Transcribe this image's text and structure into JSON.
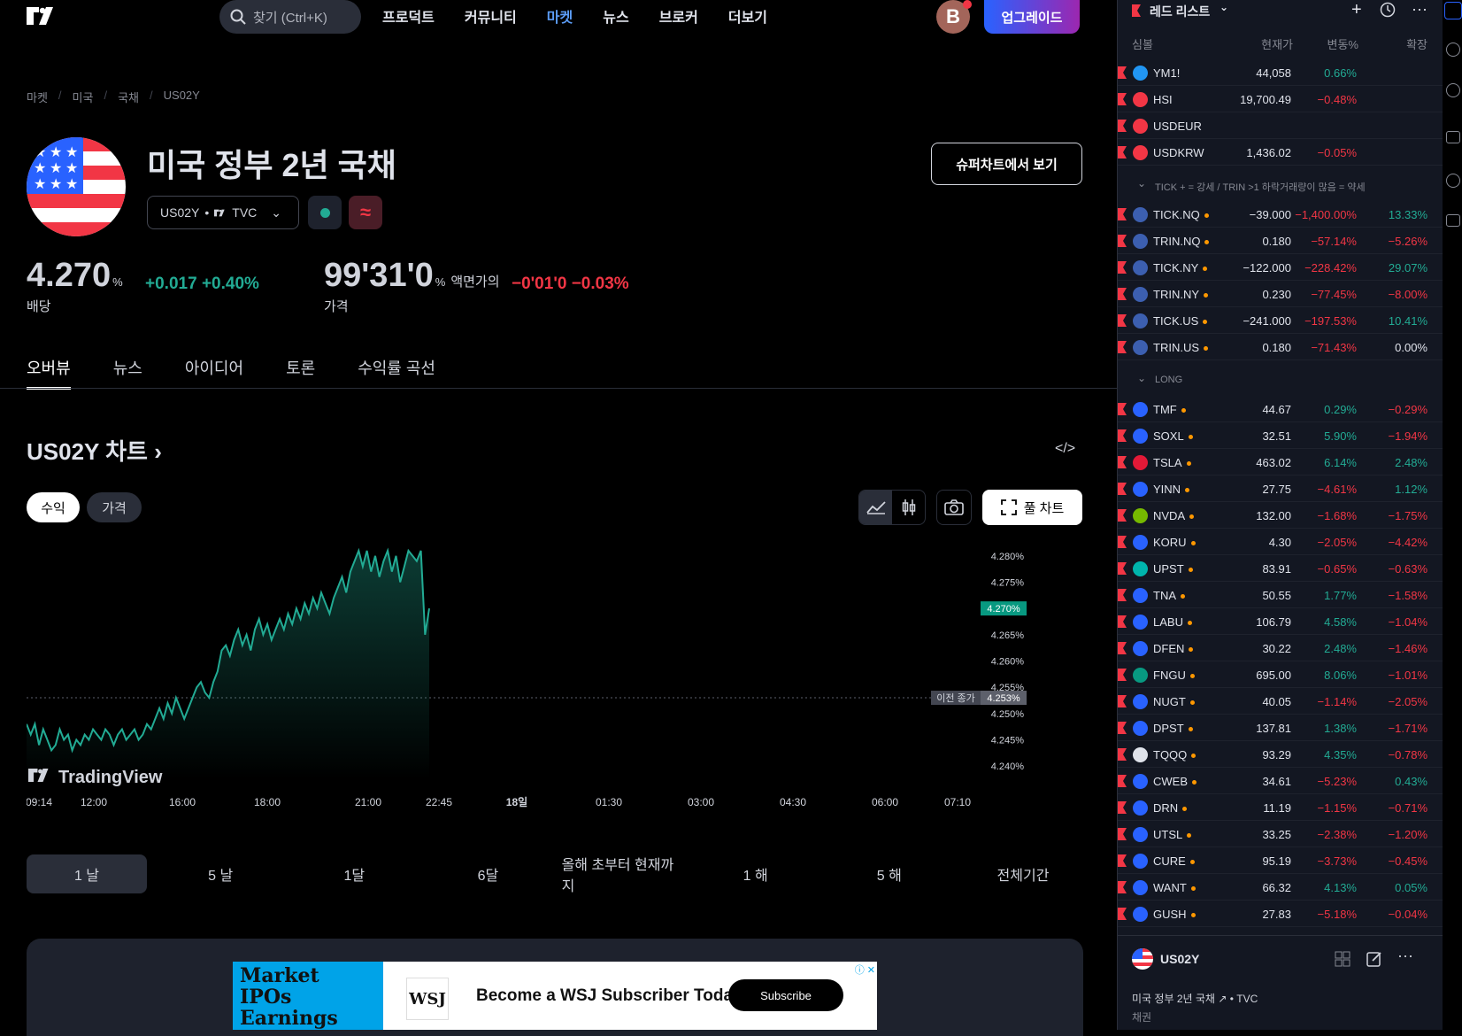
{
  "nav": {
    "search_placeholder": "찾기 (Ctrl+K)",
    "links": [
      "프로덕트",
      "커뮤니티",
      "마켓",
      "뉴스",
      "브로커",
      "더보기"
    ],
    "active_link": "마켓",
    "avatar_letter": "B",
    "upgrade_label": "업그레이드"
  },
  "breadcrumb": [
    "마켓",
    "미국",
    "국채",
    "US02Y"
  ],
  "header": {
    "title": "미국 정부 2년 국채",
    "symbol": "US02Y",
    "exchange": "TVC",
    "superchart_label": "슈퍼차트에서 보기"
  },
  "quote": {
    "yield": "4.270",
    "yield_unit": "%",
    "yield_change": "+0.017",
    "yield_change_pct": "+0.40%",
    "yield_label": "배당",
    "price": "99'31'0",
    "price_unit": "%",
    "price_unit_label": "액면가의",
    "price_change": "−0'01'0",
    "price_change_pct": "−0.03%",
    "price_label": "가격"
  },
  "tabs": [
    "오버뷰",
    "뉴스",
    "아이디어",
    "토론",
    "수익률 곡선"
  ],
  "chart": {
    "title": "US02Y 차트",
    "mode_buttons": [
      "수익",
      "가격"
    ],
    "fullchart_label": "풀 차트",
    "watermark": "TradingView",
    "prev_close_label": "이전 종가",
    "prev_close_value": "4.253%",
    "current_value": "4.270%",
    "ranges": [
      "1 날",
      "5 날",
      "1달",
      "6달",
      "올해 초부터 현재까지",
      "1 해",
      "5 해",
      "전체기간"
    ]
  },
  "chart_data": {
    "type": "area",
    "title": "",
    "xlabel": "",
    "ylabel": "",
    "ylim": [
      4.2375,
      4.283
    ],
    "yticks": [
      "4.280%",
      "4.275%",
      "4.270%",
      "4.265%",
      "4.260%",
      "4.255%",
      "4.250%",
      "4.245%",
      "4.240%"
    ],
    "ytick_values": [
      4.28,
      4.275,
      4.27,
      4.265,
      4.26,
      4.255,
      4.25,
      4.245,
      4.24
    ],
    "xticks": [
      "09:14",
      "12:00",
      "16:00",
      "18:00",
      "21:00",
      "22:45",
      "18일",
      "01:30",
      "03:00",
      "04:30",
      "06:00",
      "07:10"
    ],
    "prev_close": 4.253,
    "series": [
      {
        "values": [
          4.248,
          4.246,
          4.248,
          4.244,
          4.247,
          4.245,
          4.243,
          4.244,
          4.247,
          4.245,
          4.246,
          4.243,
          4.245,
          4.244,
          4.246,
          4.245,
          4.247,
          4.246,
          4.245,
          4.247,
          4.246,
          4.244,
          4.246,
          4.247,
          4.245,
          4.246,
          4.247,
          4.245,
          4.246,
          4.248,
          4.247,
          4.249,
          4.251,
          4.249,
          4.252,
          4.25,
          4.253,
          4.251,
          4.249,
          4.251,
          4.253,
          4.255,
          4.256,
          4.254,
          4.253,
          4.256,
          4.258,
          4.262,
          4.263,
          4.261,
          4.264,
          4.266,
          4.263,
          4.265,
          4.262,
          4.266,
          4.268,
          4.265,
          4.267,
          4.264,
          4.266,
          4.268,
          4.266,
          4.269,
          4.267,
          4.27,
          4.268,
          4.271,
          4.269,
          4.272,
          4.27,
          4.273,
          4.271,
          4.269,
          4.272,
          4.274,
          4.276,
          4.273,
          4.277,
          4.279,
          4.281,
          4.278,
          4.281,
          4.277,
          4.28,
          4.276,
          4.279,
          4.281,
          4.277,
          4.28,
          4.275,
          4.278,
          4.281,
          4.28,
          4.279,
          4.281,
          4.265,
          4.27
        ]
      }
    ]
  },
  "watchlist": {
    "title": "레드 리스트",
    "columns": [
      "심볼",
      "현재가",
      "변동%",
      "확장"
    ],
    "sections": [
      {
        "name": "",
        "rows": [
          {
            "sym": "YM1!",
            "icon": "30",
            "icolor": "#2196f3",
            "last": "44,058",
            "chp": "0.66%",
            "chpc": "pos",
            "ext": "",
            "extc": ""
          },
          {
            "sym": "HSI",
            "icon": "hsi-icon",
            "icolor": "#f23645",
            "last": "19,700.49",
            "chp": "−0.48%",
            "chpc": "neg",
            "ext": "",
            "extc": ""
          },
          {
            "sym": "USDEUR",
            "icon": "fx-icon",
            "icolor": "#f23645",
            "last": "",
            "chp": "",
            "chpc": "",
            "ext": "",
            "extc": ""
          },
          {
            "sym": "USDKRW",
            "icon": "fx-icon",
            "icolor": "#f23645",
            "last": "1,436.02",
            "chp": "−0.05%",
            "chpc": "neg",
            "ext": "",
            "extc": ""
          }
        ]
      },
      {
        "name": "TICK + = 강세 / TRIN >1 하락거래량이 많음 = 약세",
        "rows": [
          {
            "sym": "TICK.NQ",
            "icon": "us-flag",
            "icolor": "#3c5fb0",
            "last": "−39.000",
            "chp": "−1,400.00%",
            "chpc": "neg",
            "ext": "13.33%",
            "extc": "pos"
          },
          {
            "sym": "TRIN.NQ",
            "icon": "us-flag",
            "icolor": "#3c5fb0",
            "last": "0.180",
            "chp": "−57.14%",
            "chpc": "neg",
            "ext": "−5.26%",
            "extc": "neg"
          },
          {
            "sym": "TICK.NY",
            "icon": "us-flag",
            "icolor": "#3c5fb0",
            "last": "−122.000",
            "chp": "−228.42%",
            "chpc": "neg",
            "ext": "29.07%",
            "extc": "pos"
          },
          {
            "sym": "TRIN.NY",
            "icon": "us-flag",
            "icolor": "#3c5fb0",
            "last": "0.230",
            "chp": "−77.45%",
            "chpc": "neg",
            "ext": "−8.00%",
            "extc": "neg"
          },
          {
            "sym": "TICK.US",
            "icon": "us-flag",
            "icolor": "#3c5fb0",
            "last": "−241.000",
            "chp": "−197.53%",
            "chpc": "neg",
            "ext": "10.41%",
            "extc": "pos"
          },
          {
            "sym": "TRIN.US",
            "icon": "us-flag",
            "icolor": "#3c5fb0",
            "last": "0.180",
            "chp": "−71.43%",
            "chpc": "neg",
            "ext": "0.00%",
            "extc": ""
          }
        ]
      },
      {
        "name": "LONG",
        "rows": [
          {
            "sym": "TMF",
            "icon": "etf-icon",
            "icolor": "#2962ff",
            "last": "44.67",
            "chp": "0.29%",
            "chpc": "pos",
            "ext": "−0.29%",
            "extc": "neg"
          },
          {
            "sym": "SOXL",
            "icon": "etf-icon",
            "icolor": "#2962ff",
            "last": "32.51",
            "chp": "5.90%",
            "chpc": "pos",
            "ext": "−1.94%",
            "extc": "neg"
          },
          {
            "sym": "TSLA",
            "icon": "tesla-icon",
            "icolor": "#e31937",
            "last": "463.02",
            "chp": "6.14%",
            "chpc": "pos",
            "ext": "2.48%",
            "extc": "pos"
          },
          {
            "sym": "YINN",
            "icon": "etf-icon",
            "icolor": "#2962ff",
            "last": "27.75",
            "chp": "−4.61%",
            "chpc": "neg",
            "ext": "1.12%",
            "extc": "pos"
          },
          {
            "sym": "NVDA",
            "icon": "nvidia-icon",
            "icolor": "#76b900",
            "last": "132.00",
            "chp": "−1.68%",
            "chpc": "neg",
            "ext": "−1.75%",
            "extc": "neg"
          },
          {
            "sym": "KORU",
            "icon": "etf-icon",
            "icolor": "#2962ff",
            "last": "4.30",
            "chp": "−2.05%",
            "chpc": "neg",
            "ext": "−4.42%",
            "extc": "neg"
          },
          {
            "sym": "UPST",
            "icon": "upstart-icon",
            "icolor": "#00b5ad",
            "last": "83.91",
            "chp": "−0.65%",
            "chpc": "neg",
            "ext": "−0.63%",
            "extc": "neg"
          },
          {
            "sym": "TNA",
            "icon": "etf-icon",
            "icolor": "#2962ff",
            "last": "50.55",
            "chp": "1.77%",
            "chpc": "pos",
            "ext": "−1.58%",
            "extc": "neg"
          },
          {
            "sym": "LABU",
            "icon": "etf-icon",
            "icolor": "#2962ff",
            "last": "106.79",
            "chp": "4.58%",
            "chpc": "pos",
            "ext": "−1.04%",
            "extc": "neg"
          },
          {
            "sym": "DFEN",
            "icon": "etf-icon",
            "icolor": "#2962ff",
            "last": "30.22",
            "chp": "2.48%",
            "chpc": "pos",
            "ext": "−1.46%",
            "extc": "neg"
          },
          {
            "sym": "FNGU",
            "icon": "fngu-icon",
            "icolor": "#089981",
            "last": "695.00",
            "chp": "8.06%",
            "chpc": "pos",
            "ext": "−1.01%",
            "extc": "neg"
          },
          {
            "sym": "NUGT",
            "icon": "etf-icon",
            "icolor": "#2962ff",
            "last": "40.05",
            "chp": "−1.14%",
            "chpc": "neg",
            "ext": "−2.05%",
            "extc": "neg"
          },
          {
            "sym": "DPST",
            "icon": "etf-icon",
            "icolor": "#2962ff",
            "last": "137.81",
            "chp": "1.38%",
            "chpc": "pos",
            "ext": "−1.71%",
            "extc": "neg"
          },
          {
            "sym": "TQQQ",
            "icon": "tqqq-icon",
            "icolor": "#e0e3eb",
            "last": "93.29",
            "chp": "4.35%",
            "chpc": "pos",
            "ext": "−0.78%",
            "extc": "neg"
          },
          {
            "sym": "CWEB",
            "icon": "etf-icon",
            "icolor": "#2962ff",
            "last": "34.61",
            "chp": "−5.23%",
            "chpc": "neg",
            "ext": "0.43%",
            "extc": "pos"
          },
          {
            "sym": "DRN",
            "icon": "etf-icon",
            "icolor": "#2962ff",
            "last": "11.19",
            "chp": "−1.15%",
            "chpc": "neg",
            "ext": "−0.71%",
            "extc": "neg"
          },
          {
            "sym": "UTSL",
            "icon": "etf-icon",
            "icolor": "#2962ff",
            "last": "33.25",
            "chp": "−2.38%",
            "chpc": "neg",
            "ext": "−1.20%",
            "extc": "neg"
          },
          {
            "sym": "CURE",
            "icon": "etf-icon",
            "icolor": "#2962ff",
            "last": "95.19",
            "chp": "−3.73%",
            "chpc": "neg",
            "ext": "−0.45%",
            "extc": "neg"
          },
          {
            "sym": "WANT",
            "icon": "etf-icon",
            "icolor": "#2962ff",
            "last": "66.32",
            "chp": "4.13%",
            "chpc": "pos",
            "ext": "0.05%",
            "extc": "pos"
          },
          {
            "sym": "GUSH",
            "icon": "etf-icon",
            "icolor": "#2962ff",
            "last": "27.83",
            "chp": "−5.18%",
            "chpc": "neg",
            "ext": "−0.04%",
            "extc": "neg"
          }
        ]
      }
    ]
  },
  "details": {
    "symbol": "US02Y",
    "name": "미국 정부 2년 국채",
    "exchange": "TVC",
    "category": "채권"
  },
  "ad": {
    "headline": "Become a WSJ Subscriber Today",
    "logo": "WSJ",
    "cta": "Subscribe",
    "image_text": [
      "Market",
      "IPOs",
      "Earnings"
    ]
  },
  "colors": {
    "accent": "#2962ff",
    "up": "#22ab94",
    "down": "#f23645",
    "bg": "#000000",
    "panel": "#131722"
  }
}
